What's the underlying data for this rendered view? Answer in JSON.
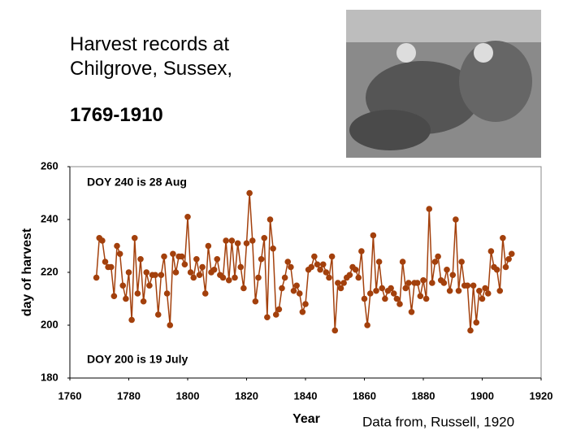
{
  "chart_data": {
    "type": "line",
    "title": "Harvest records at Chilgrove, Sussex,",
    "subtitle": "1769-1910",
    "x_label": "Year",
    "y_label": "day of harvest",
    "annotations": [
      "DOY 240 is 28 Aug",
      "DOY 200 is 19 July"
    ],
    "source": "Data from, Russell, 1920",
    "x": [
      1769,
      1770,
      1771,
      1772,
      1773,
      1774,
      1775,
      1776,
      1777,
      1778,
      1779,
      1780,
      1781,
      1782,
      1783,
      1784,
      1785,
      1786,
      1787,
      1788,
      1789,
      1790,
      1791,
      1792,
      1793,
      1794,
      1795,
      1796,
      1797,
      1798,
      1799,
      1800,
      1801,
      1802,
      1803,
      1804,
      1805,
      1806,
      1807,
      1808,
      1809,
      1810,
      1811,
      1812,
      1813,
      1814,
      1815,
      1816,
      1817,
      1818,
      1819,
      1820,
      1821,
      1822,
      1823,
      1824,
      1825,
      1826,
      1827,
      1828,
      1829,
      1830,
      1831,
      1832,
      1833,
      1834,
      1835,
      1836,
      1837,
      1838,
      1839,
      1840,
      1841,
      1842,
      1843,
      1844,
      1845,
      1846,
      1847,
      1848,
      1849,
      1850,
      1851,
      1852,
      1853,
      1854,
      1855,
      1856,
      1857,
      1858,
      1859,
      1860,
      1861,
      1862,
      1863,
      1864,
      1865,
      1866,
      1867,
      1868,
      1869,
      1870,
      1871,
      1872,
      1873,
      1874,
      1875,
      1876,
      1877,
      1878,
      1879,
      1880,
      1881,
      1882,
      1883,
      1884,
      1885,
      1886,
      1887,
      1888,
      1889,
      1890,
      1891,
      1892,
      1893,
      1894,
      1895,
      1896,
      1897,
      1898,
      1899,
      1900,
      1901,
      1902,
      1903,
      1904,
      1905,
      1906,
      1907,
      1908,
      1909,
      1910
    ],
    "series": [
      {
        "name": "day of harvest",
        "color": "#a3400c",
        "values": [
          218,
          233,
          232,
          224,
          222,
          222,
          211,
          230,
          227,
          215,
          210,
          220,
          202,
          233,
          212,
          225,
          209,
          220,
          215,
          219,
          219,
          204,
          219,
          226,
          212,
          200,
          227,
          220,
          226,
          226,
          223,
          241,
          220,
          218,
          225,
          219,
          222,
          212,
          230,
          220,
          221,
          225,
          219,
          218,
          232,
          217,
          232,
          218,
          231,
          222,
          214,
          231,
          250,
          232,
          209,
          218,
          225,
          233,
          203,
          240,
          229,
          204,
          206,
          214,
          218,
          224,
          222,
          213,
          215,
          212,
          205,
          208,
          221,
          222,
          226,
          223,
          221,
          223,
          220,
          218,
          226,
          198,
          216,
          214,
          216,
          218,
          219,
          222,
          221,
          218,
          228,
          210,
          200,
          212,
          234,
          213,
          224,
          214,
          210,
          213,
          214,
          212,
          210,
          208,
          224,
          214,
          216,
          205,
          216,
          216,
          211,
          217,
          210,
          244,
          216,
          224,
          226,
          217,
          216,
          221,
          213,
          219,
          240,
          213,
          224,
          215,
          215,
          198,
          215,
          201,
          213,
          210,
          214,
          212,
          228,
          222,
          221,
          213,
          233,
          222,
          225,
          227
        ]
      }
    ],
    "xlim": [
      1760,
      1920
    ],
    "xticks": [
      1760,
      1780,
      1800,
      1820,
      1840,
      1860,
      1880,
      1900,
      1920
    ],
    "ylim": [
      180,
      260
    ],
    "yticks": [
      180,
      200,
      220,
      240,
      260
    ],
    "grid": false
  }
}
